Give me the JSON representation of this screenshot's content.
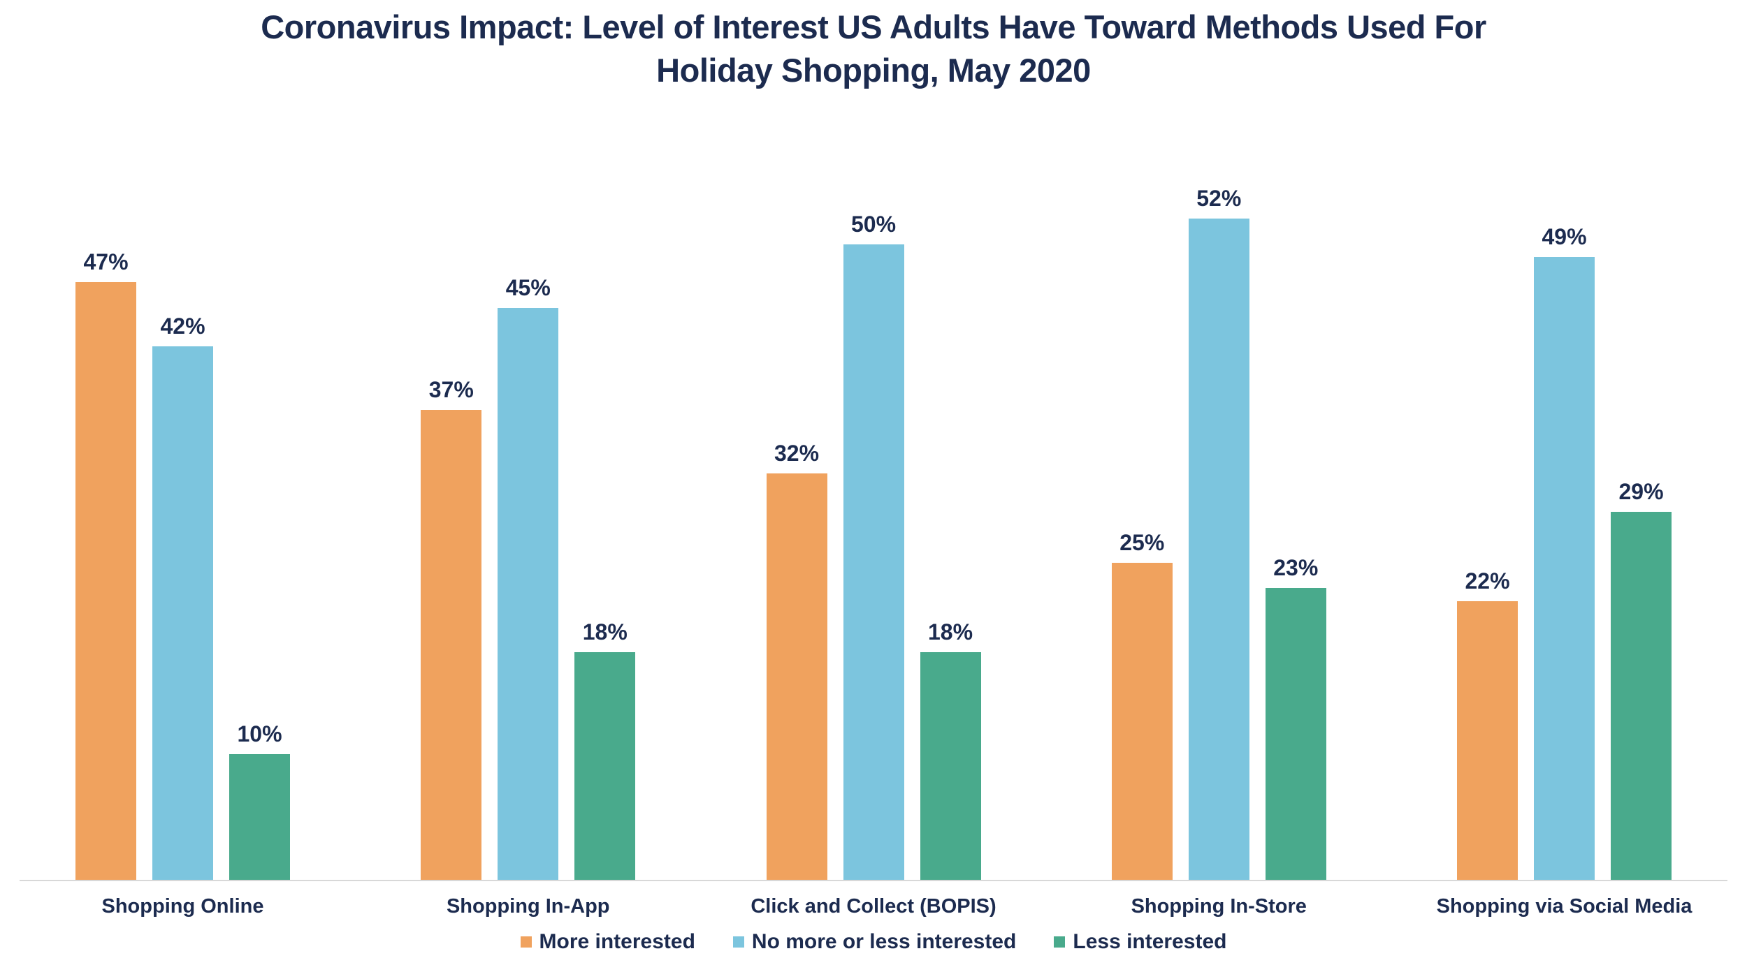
{
  "title": {
    "line1": "Coronavirus Impact: Level of Interest US Adults Have Toward Methods Used For",
    "line2": "Holiday Shopping, May 2020"
  },
  "colors": {
    "text_navy": "#1c2b4f",
    "axis_line": "#d8d8d8",
    "more_interested": "#f0a25e",
    "no_more_or_less": "#7cc5de",
    "less_interested": "#49aa8c"
  },
  "chart_data": {
    "type": "bar",
    "title": "Coronavirus Impact: Level of Interest US Adults Have Toward Methods Used For Holiday Shopping, May 2020",
    "categories": [
      "Shopping Online",
      "Shopping In-App",
      "Click and Collect (BOPIS)",
      "Shopping In-Store",
      "Shopping via Social Media"
    ],
    "series": [
      {
        "name": "More interested",
        "color": "#f0a25e",
        "values": [
          47,
          37,
          32,
          25,
          22
        ]
      },
      {
        "name": "No more or less interested",
        "color": "#7cc5de",
        "values": [
          42,
          45,
          50,
          52,
          49
        ]
      },
      {
        "name": "Less interested",
        "color": "#49aa8c",
        "values": [
          10,
          18,
          18,
          23,
          29
        ]
      }
    ],
    "value_suffix": "%",
    "data_labels": true,
    "xlabel": "",
    "ylabel": "",
    "ylim": [
      0,
      55
    ],
    "grid": false,
    "legend_position": "bottom"
  }
}
